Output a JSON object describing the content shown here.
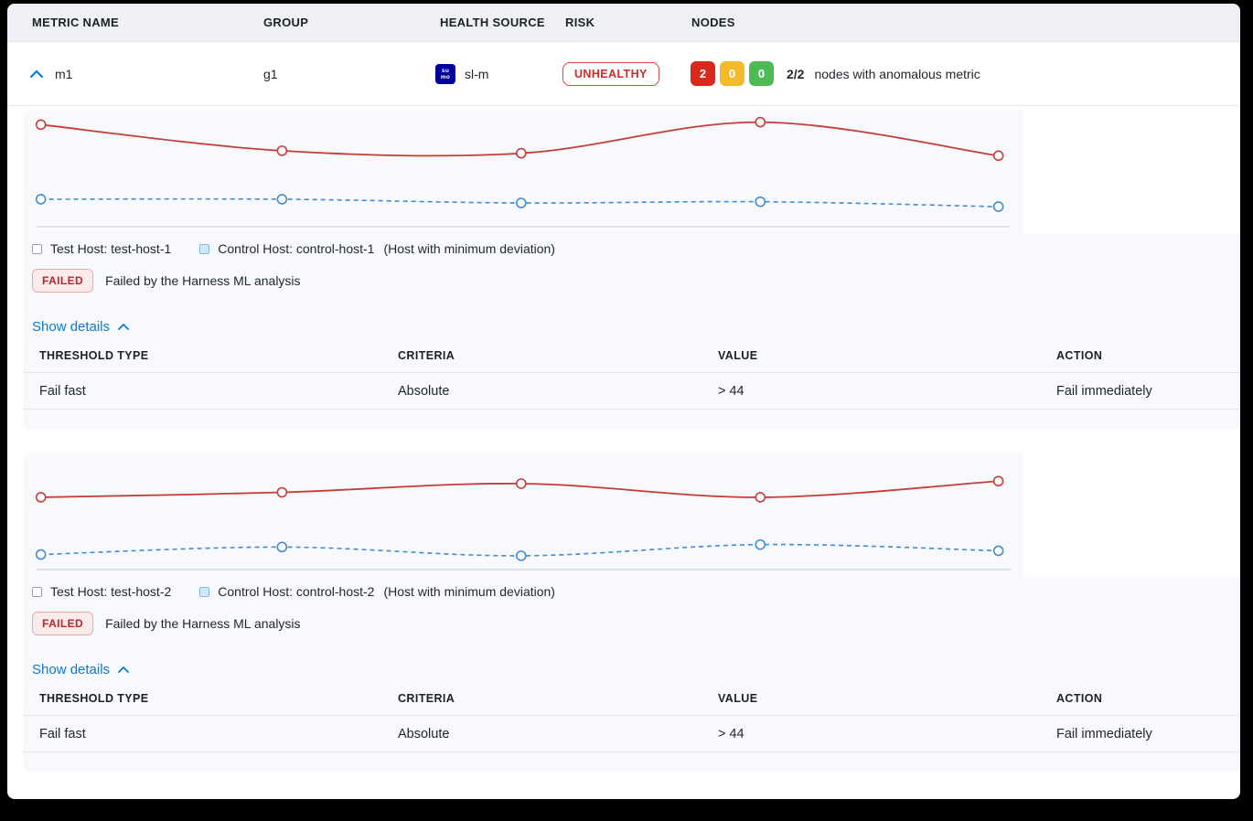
{
  "table_header": {
    "metric_name": "METRIC NAME",
    "group": "GROUP",
    "health_source": "HEALTH SOURCE",
    "risk": "RISK",
    "nodes": "NODES"
  },
  "metric_row": {
    "name": "m1",
    "group": "g1",
    "health_source": {
      "icon_line1": "su",
      "icon_line2": "mo",
      "label": "sl-m"
    },
    "risk_badge": "UNHEALTHY",
    "nodes": {
      "counts": [
        {
          "value": "2",
          "color": "#da291c"
        },
        {
          "value": "0",
          "color": "#f3bb2a"
        },
        {
          "value": "0",
          "color": "#4dbb53"
        }
      ],
      "ratio": "2/2",
      "caption": "nodes with anomalous metric"
    }
  },
  "sections": [
    {
      "legend": {
        "test_label": "Test Host: test-host-1",
        "control_label": "Control Host: control-host-1",
        "note": "(Host with minimum deviation)"
      },
      "status": {
        "badge": "FAILED",
        "message": "Failed by the Harness ML analysis"
      },
      "details_link": "Show details",
      "threshold_table": {
        "headers": [
          "THRESHOLD TYPE",
          "CRITERIA",
          "VALUE",
          "ACTION"
        ],
        "rows": [
          [
            "Fail fast",
            "Absolute",
            "> 44",
            "Fail immediately"
          ]
        ]
      }
    },
    {
      "legend": {
        "test_label": "Test Host: test-host-2",
        "control_label": "Control Host: control-host-2",
        "note": "(Host with minimum deviation)"
      },
      "status": {
        "badge": "FAILED",
        "message": "Failed by the Harness ML analysis"
      },
      "details_link": "Show details",
      "threshold_table": {
        "headers": [
          "THRESHOLD TYPE",
          "CRITERIA",
          "VALUE",
          "ACTION"
        ],
        "rows": [
          [
            "Fail fast",
            "Absolute",
            "> 44",
            "Fail immediately"
          ]
        ]
      }
    }
  ],
  "chart_data": [
    {
      "type": "line",
      "x_pct": [
        1.8,
        25.9,
        49.8,
        73.7,
        97.5
      ],
      "series": [
        {
          "name": "Test Host: test-host-1",
          "color": "#c63c39",
          "style": "solid",
          "values": [
            88,
            67,
            65,
            90,
            63
          ]
        },
        {
          "name": "Control Host: control-host-1",
          "color": "#418bd2",
          "style": "dashed",
          "values": [
            28,
            28,
            25,
            26,
            22
          ]
        }
      ],
      "ylim": [
        0,
        100
      ],
      "grid": false,
      "legend_position": "bottom"
    },
    {
      "type": "line",
      "x_pct": [
        1.8,
        25.9,
        49.8,
        73.7,
        97.5
      ],
      "series": [
        {
          "name": "Test Host: test-host-2",
          "color": "#c63c39",
          "style": "solid",
          "values": [
            64,
            68,
            75,
            64,
            77
          ]
        },
        {
          "name": "Control Host: control-host-2",
          "color": "#418bd2",
          "style": "dashed",
          "values": [
            18,
            24,
            17,
            26,
            21
          ]
        }
      ],
      "ylim": [
        0,
        100
      ],
      "grid": false,
      "legend_position": "bottom"
    }
  ],
  "colors": {
    "accent_blue": "#0b79d0",
    "risk_red": "#d02b2b",
    "failed_text": "#bf222b",
    "axis_line": "#d8dbe5",
    "section_bg": "#f8f9fc",
    "header_bg": "#eef0f5",
    "marker_fill": "#fdfdfe"
  }
}
